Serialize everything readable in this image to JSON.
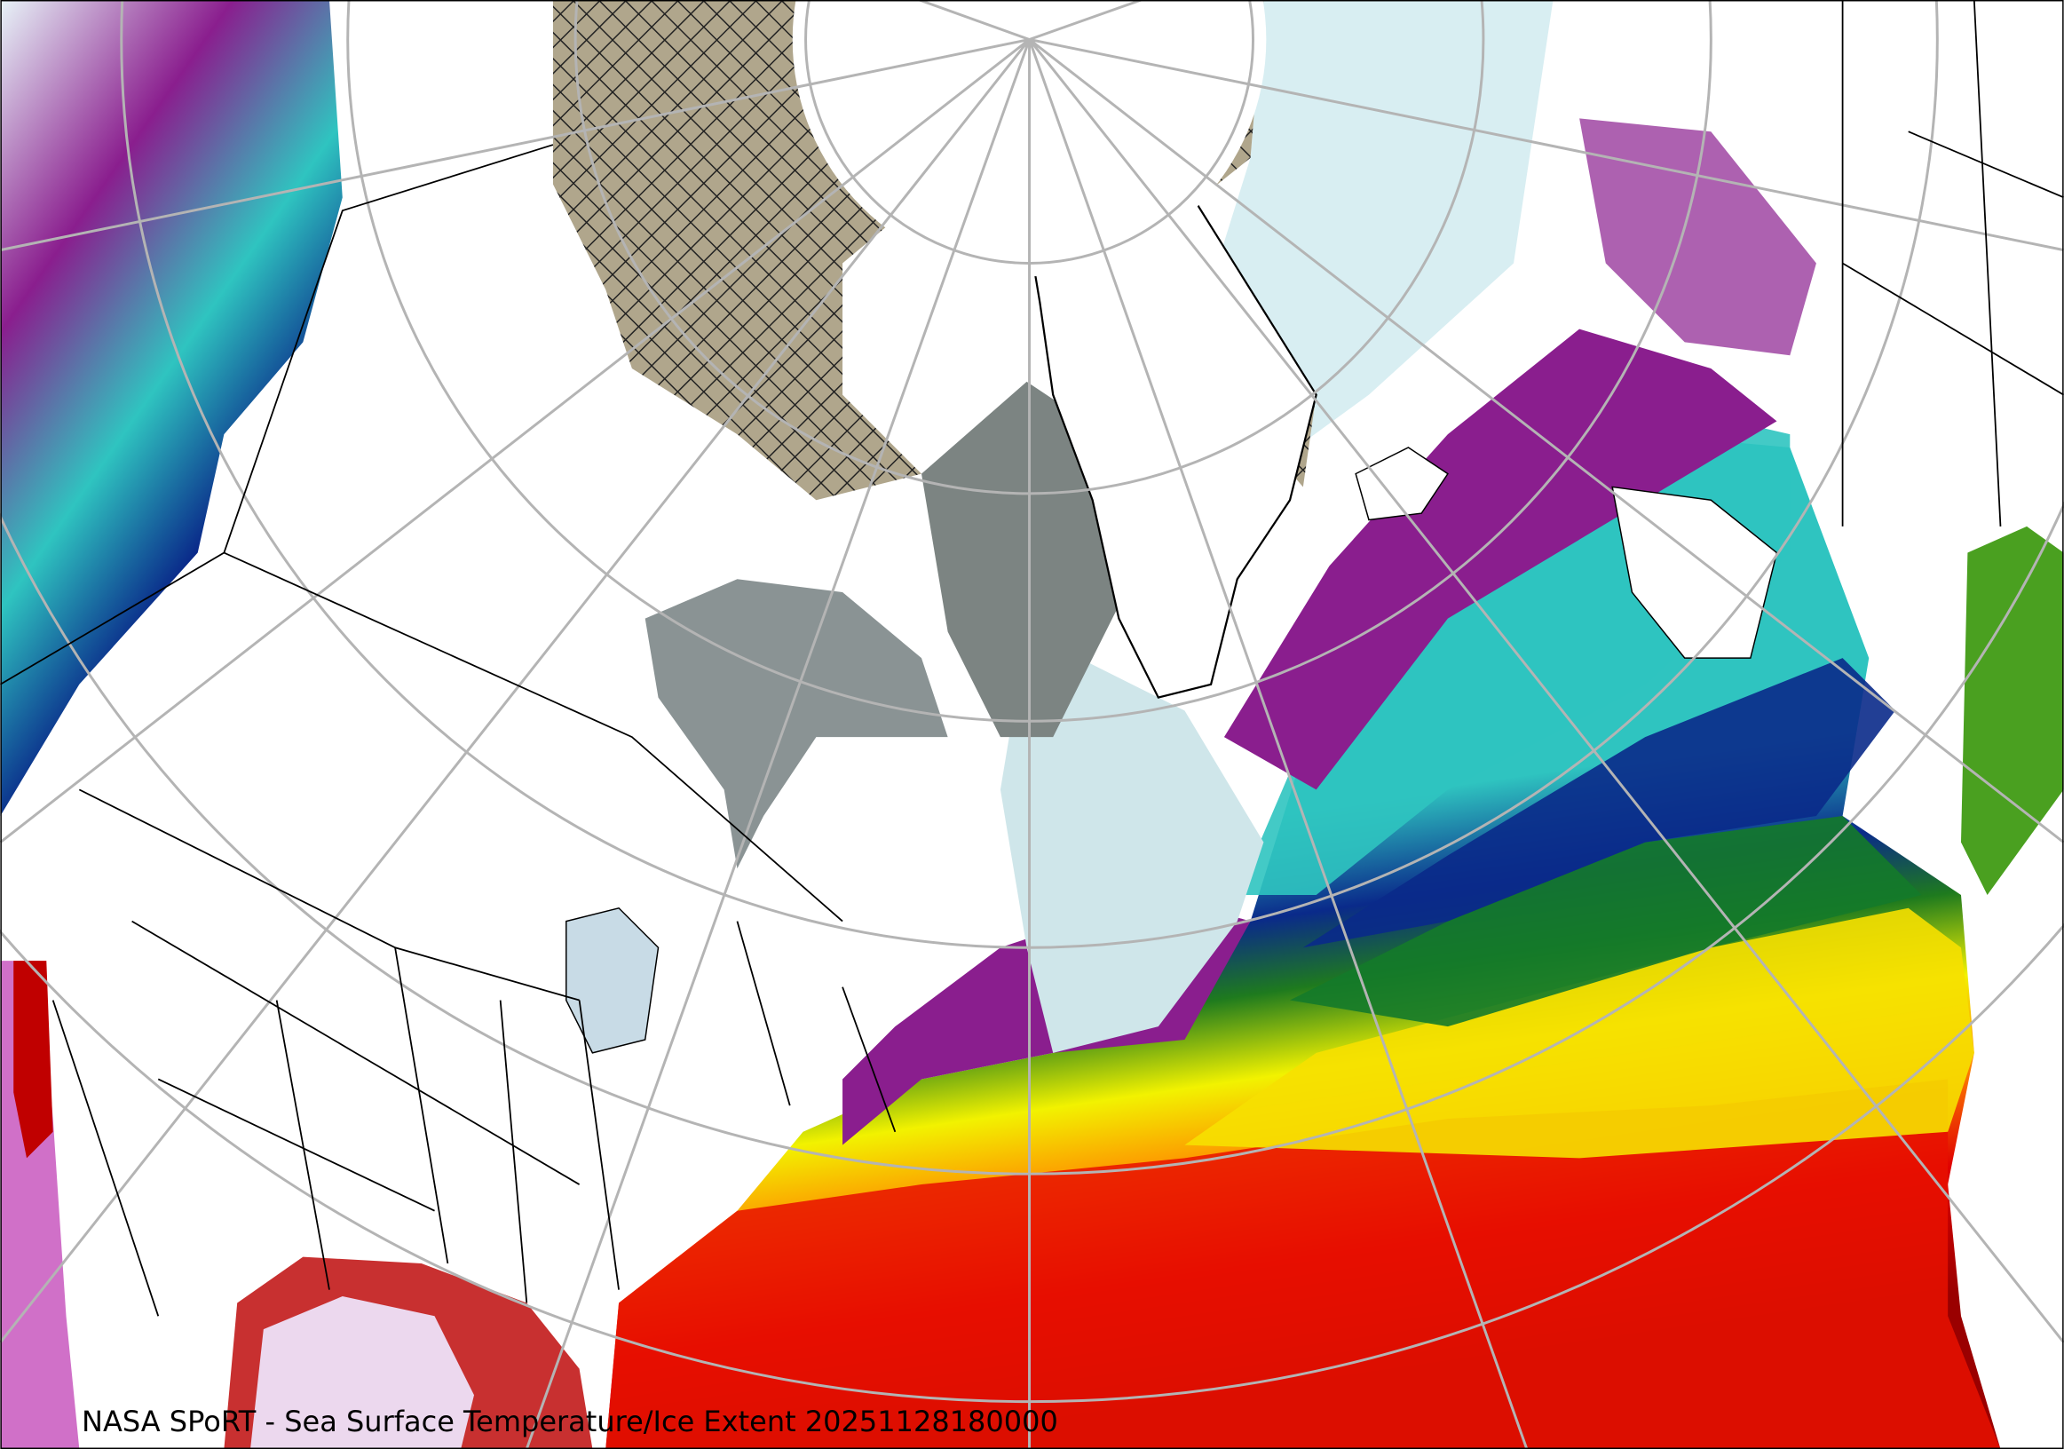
{
  "caption": "NASA SPoRT - Sea Surface Temperature/Ice Extent 20251128180000",
  "colors": {
    "land": "#ffffff",
    "ice_hatch": "#b0a68c",
    "ice_gray": "#8a9394",
    "very_cold": "#d8eef2",
    "cold_purple": "#8a1e8e",
    "teal": "#2fc4c0",
    "blue": "#0a2a8a",
    "green": "#1e7a1e",
    "yellow": "#f2f200",
    "orange": "#ff8a00",
    "red": "#e00000",
    "dark_red": "#9a0000",
    "graticule": "#b4b4b4"
  }
}
